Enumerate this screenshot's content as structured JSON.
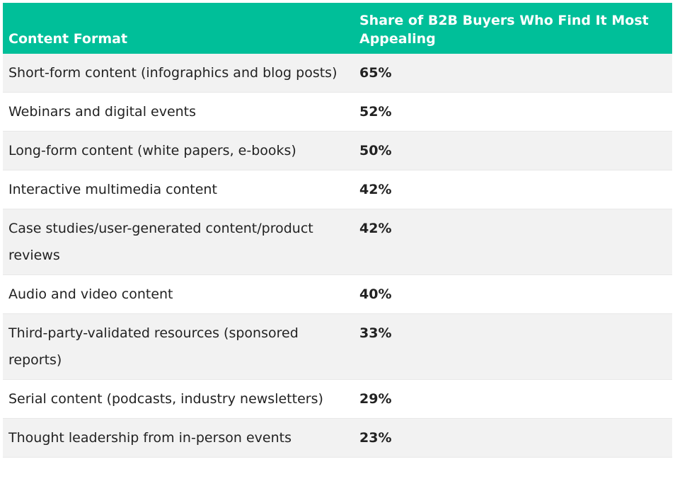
{
  "table": {
    "header": [
      "Content Format",
      "Share of B2B Buyers Who Find It Most Appealing"
    ],
    "rows": [
      [
        "Short-form content (infographics and blog posts)",
        "65%"
      ],
      [
        "Webinars and digital events",
        "52%"
      ],
      [
        "Long-form content (white papers, e-books)",
        "50%"
      ],
      [
        "Interactive multimedia content",
        "42%"
      ],
      [
        "Case studies/user-generated content/product reviews",
        "42%"
      ],
      [
        "Audio and video content",
        "40%"
      ],
      [
        "Third-party-validated resources (sponsored reports)",
        "33%"
      ],
      [
        "Serial content (podcasts, industry newsletters)",
        "29%"
      ],
      [
        "Thought leadership from in-person events",
        "23%"
      ]
    ]
  }
}
